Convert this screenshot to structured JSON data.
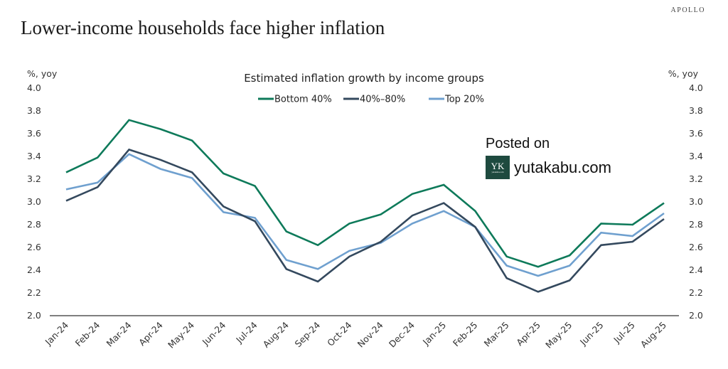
{
  "brand": "APOLLO",
  "title": "Lower-income households face higher inflation",
  "watermark": {
    "posted": "Posted on",
    "site": "yutakabu.com",
    "logo_glyph": "YK",
    "logo_small": "yutakabu.com"
  },
  "chart_data": {
    "type": "line",
    "title": "Estimated inflation growth by income groups",
    "ylabel_left": "%, yoy",
    "ylabel_right": "%, yoy",
    "xlabel": "",
    "ylim": [
      2.0,
      4.0
    ],
    "yticks": [
      "4.0",
      "3.8",
      "3.6",
      "3.4",
      "3.2",
      "3.0",
      "2.8",
      "2.6",
      "2.4",
      "2.2",
      "2.0"
    ],
    "grid": false,
    "legend_position": "top-center",
    "categories": [
      "Jan-24",
      "Feb-24",
      "Mar-24",
      "Apr-24",
      "May-24",
      "Jun-24",
      "Jul-24",
      "Aug-24",
      "Sep-24",
      "Oct-24",
      "Nov-24",
      "Dec-24",
      "Jan-25",
      "Feb-25",
      "Mar-25",
      "Apr-25",
      "May-25",
      "Jun-25",
      "Jul-25",
      "Aug-25"
    ],
    "series": [
      {
        "name": "Bottom 40%",
        "color": "#0e7a5a",
        "values": [
          3.26,
          3.39,
          3.72,
          3.64,
          3.54,
          3.25,
          3.14,
          2.74,
          2.62,
          2.81,
          2.89,
          3.07,
          3.15,
          2.92,
          2.52,
          2.43,
          2.53,
          2.81,
          2.8,
          2.99
        ]
      },
      {
        "name": "40%–80%",
        "color": "#34495e",
        "values": [
          3.01,
          3.13,
          3.46,
          3.37,
          3.26,
          2.96,
          2.83,
          2.41,
          2.3,
          2.52,
          2.65,
          2.88,
          2.99,
          2.78,
          2.33,
          2.21,
          2.31,
          2.62,
          2.65,
          2.85
        ]
      },
      {
        "name": "Top 20%",
        "color": "#6fa0cf",
        "values": [
          3.11,
          3.17,
          3.42,
          3.29,
          3.21,
          2.91,
          2.86,
          2.49,
          2.41,
          2.57,
          2.64,
          2.81,
          2.92,
          2.78,
          2.44,
          2.35,
          2.44,
          2.73,
          2.7,
          2.9
        ]
      }
    ]
  }
}
